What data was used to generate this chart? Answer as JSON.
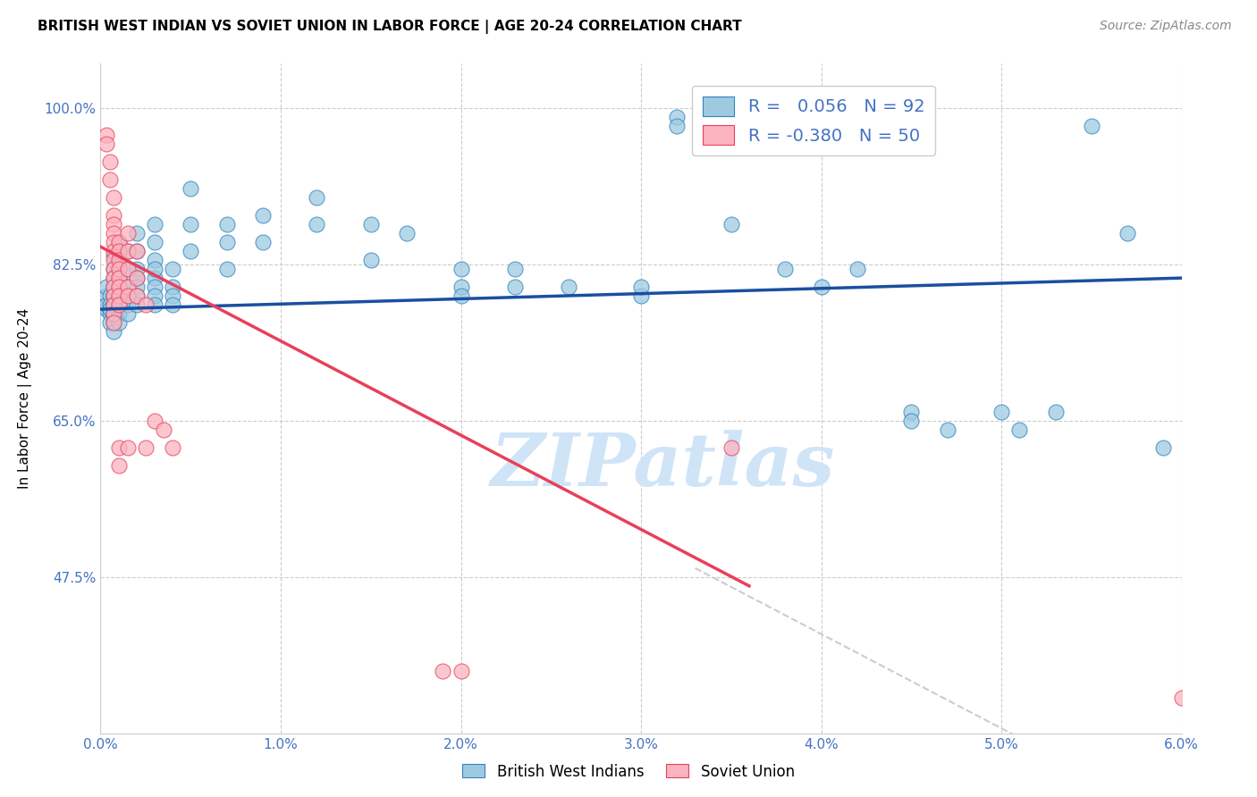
{
  "title": "BRITISH WEST INDIAN VS SOVIET UNION IN LABOR FORCE | AGE 20-24 CORRELATION CHART",
  "source_text": "Source: ZipAtlas.com",
  "ylabel": "In Labor Force | Age 20-24",
  "legend_label_1": "British West Indians",
  "legend_label_2": "Soviet Union",
  "R1": 0.056,
  "N1": 92,
  "R2": -0.38,
  "N2": 50,
  "xlim": [
    0.0,
    0.06
  ],
  "ylim": [
    0.3,
    1.05
  ],
  "xticks": [
    0.0,
    0.01,
    0.02,
    0.03,
    0.04,
    0.05,
    0.06
  ],
  "xticklabels": [
    "0.0%",
    "1.0%",
    "2.0%",
    "3.0%",
    "4.0%",
    "5.0%",
    "6.0%"
  ],
  "yticks": [
    0.475,
    0.65,
    0.825,
    1.0
  ],
  "yticklabels": [
    "47.5%",
    "65.0%",
    "82.5%",
    "100.0%"
  ],
  "color_blue": "#9ecae1",
  "color_pink": "#fbb4c0",
  "edge_blue": "#3182bd",
  "edge_pink": "#e8405a",
  "line_color_blue": "#1a4fa0",
  "line_color_pink": "#e8405a",
  "line_color_gray": "#cccccc",
  "watermark": "ZIPatlas",
  "watermark_color": "#d0e4f7",
  "blue_line_x": [
    0.0,
    0.06
  ],
  "blue_line_y": [
    0.775,
    0.81
  ],
  "pink_line_x": [
    0.0,
    0.036
  ],
  "pink_line_y": [
    0.845,
    0.465
  ],
  "gray_line_x": [
    0.033,
    0.06
  ],
  "gray_line_y": [
    0.485,
    0.2
  ],
  "blue_scatter": [
    [
      0.0003,
      0.79
    ],
    [
      0.0003,
      0.8
    ],
    [
      0.0003,
      0.775
    ],
    [
      0.0003,
      0.78
    ],
    [
      0.0005,
      0.79
    ],
    [
      0.0005,
      0.78
    ],
    [
      0.0005,
      0.77
    ],
    [
      0.0005,
      0.76
    ],
    [
      0.0005,
      0.775
    ],
    [
      0.0007,
      0.835
    ],
    [
      0.0007,
      0.82
    ],
    [
      0.0007,
      0.81
    ],
    [
      0.0007,
      0.8
    ],
    [
      0.0007,
      0.79
    ],
    [
      0.0007,
      0.78
    ],
    [
      0.0007,
      0.77
    ],
    [
      0.0007,
      0.76
    ],
    [
      0.0007,
      0.75
    ],
    [
      0.001,
      0.85
    ],
    [
      0.001,
      0.84
    ],
    [
      0.001,
      0.83
    ],
    [
      0.001,
      0.82
    ],
    [
      0.001,
      0.81
    ],
    [
      0.001,
      0.8
    ],
    [
      0.001,
      0.79
    ],
    [
      0.001,
      0.78
    ],
    [
      0.001,
      0.77
    ],
    [
      0.001,
      0.76
    ],
    [
      0.0015,
      0.84
    ],
    [
      0.0015,
      0.82
    ],
    [
      0.0015,
      0.8
    ],
    [
      0.0015,
      0.79
    ],
    [
      0.0015,
      0.78
    ],
    [
      0.0015,
      0.77
    ],
    [
      0.002,
      0.86
    ],
    [
      0.002,
      0.84
    ],
    [
      0.002,
      0.82
    ],
    [
      0.002,
      0.81
    ],
    [
      0.002,
      0.8
    ],
    [
      0.002,
      0.79
    ],
    [
      0.002,
      0.78
    ],
    [
      0.003,
      0.87
    ],
    [
      0.003,
      0.85
    ],
    [
      0.003,
      0.83
    ],
    [
      0.003,
      0.81
    ],
    [
      0.003,
      0.8
    ],
    [
      0.003,
      0.79
    ],
    [
      0.003,
      0.78
    ],
    [
      0.003,
      0.82
    ],
    [
      0.004,
      0.82
    ],
    [
      0.004,
      0.8
    ],
    [
      0.004,
      0.79
    ],
    [
      0.004,
      0.78
    ],
    [
      0.005,
      0.91
    ],
    [
      0.005,
      0.87
    ],
    [
      0.005,
      0.84
    ],
    [
      0.007,
      0.87
    ],
    [
      0.007,
      0.85
    ],
    [
      0.007,
      0.82
    ],
    [
      0.009,
      0.88
    ],
    [
      0.009,
      0.85
    ],
    [
      0.012,
      0.9
    ],
    [
      0.012,
      0.87
    ],
    [
      0.015,
      0.87
    ],
    [
      0.015,
      0.83
    ],
    [
      0.017,
      0.86
    ],
    [
      0.02,
      0.82
    ],
    [
      0.02,
      0.8
    ],
    [
      0.02,
      0.79
    ],
    [
      0.023,
      0.82
    ],
    [
      0.023,
      0.8
    ],
    [
      0.026,
      0.8
    ],
    [
      0.03,
      0.79
    ],
    [
      0.03,
      0.8
    ],
    [
      0.032,
      0.99
    ],
    [
      0.032,
      0.98
    ],
    [
      0.035,
      0.87
    ],
    [
      0.038,
      0.82
    ],
    [
      0.04,
      0.8
    ],
    [
      0.042,
      0.82
    ],
    [
      0.045,
      0.66
    ],
    [
      0.045,
      0.65
    ],
    [
      0.047,
      0.64
    ],
    [
      0.05,
      0.66
    ],
    [
      0.051,
      0.64
    ],
    [
      0.053,
      0.66
    ],
    [
      0.055,
      0.98
    ],
    [
      0.057,
      0.86
    ],
    [
      0.059,
      0.62
    ]
  ],
  "pink_scatter": [
    [
      0.0003,
      0.97
    ],
    [
      0.0003,
      0.96
    ],
    [
      0.0005,
      0.94
    ],
    [
      0.0005,
      0.92
    ],
    [
      0.0007,
      0.9
    ],
    [
      0.0007,
      0.88
    ],
    [
      0.0007,
      0.87
    ],
    [
      0.0007,
      0.86
    ],
    [
      0.0007,
      0.85
    ],
    [
      0.0007,
      0.84
    ],
    [
      0.0007,
      0.83
    ],
    [
      0.0007,
      0.82
    ],
    [
      0.0007,
      0.81
    ],
    [
      0.0007,
      0.8
    ],
    [
      0.0007,
      0.79
    ],
    [
      0.0007,
      0.78
    ],
    [
      0.0007,
      0.77
    ],
    [
      0.0007,
      0.76
    ],
    [
      0.001,
      0.85
    ],
    [
      0.001,
      0.84
    ],
    [
      0.001,
      0.83
    ],
    [
      0.001,
      0.82
    ],
    [
      0.001,
      0.81
    ],
    [
      0.001,
      0.8
    ],
    [
      0.001,
      0.79
    ],
    [
      0.001,
      0.78
    ],
    [
      0.001,
      0.62
    ],
    [
      0.001,
      0.6
    ],
    [
      0.0015,
      0.86
    ],
    [
      0.0015,
      0.84
    ],
    [
      0.0015,
      0.82
    ],
    [
      0.0015,
      0.8
    ],
    [
      0.0015,
      0.79
    ],
    [
      0.0015,
      0.62
    ],
    [
      0.002,
      0.84
    ],
    [
      0.002,
      0.81
    ],
    [
      0.002,
      0.79
    ],
    [
      0.0025,
      0.78
    ],
    [
      0.0025,
      0.62
    ],
    [
      0.003,
      0.65
    ],
    [
      0.0035,
      0.64
    ],
    [
      0.004,
      0.62
    ],
    [
      0.019,
      0.37
    ],
    [
      0.02,
      0.37
    ],
    [
      0.035,
      0.62
    ],
    [
      0.06,
      0.34
    ]
  ]
}
